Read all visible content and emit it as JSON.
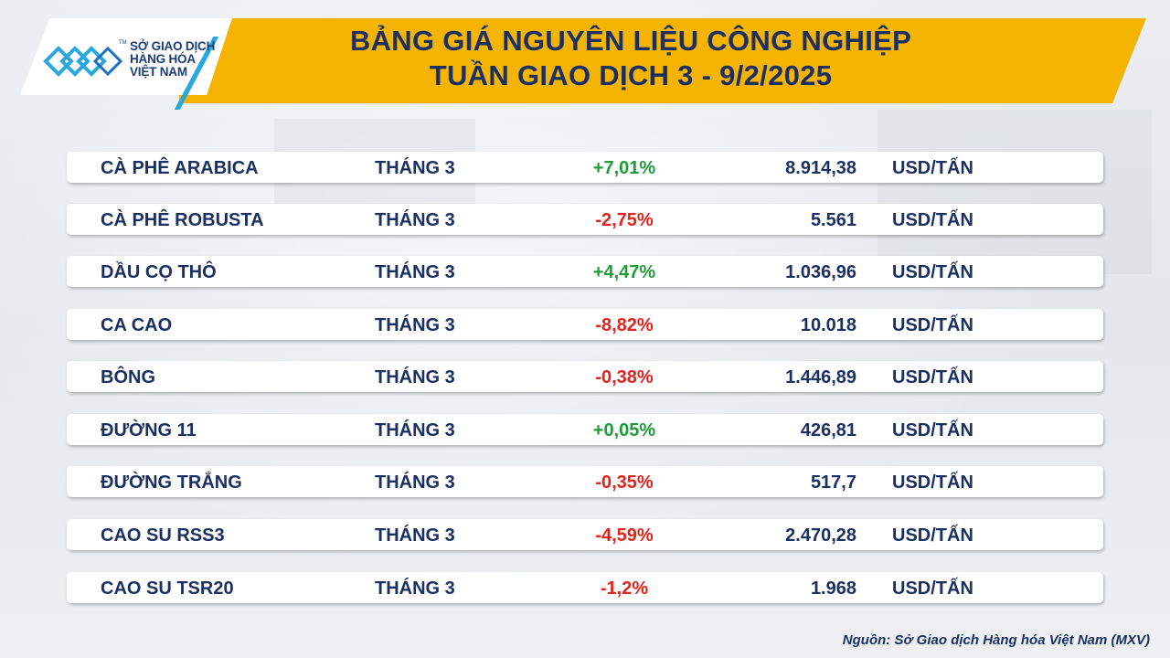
{
  "header": {
    "logo_lines": [
      "SỞ GIAO DỊCH",
      "HÀNG HÓA",
      "VIỆT NAM"
    ],
    "logo_tm": "TM",
    "title_line1": "BẢNG GIÁ NGUYÊN LIỆU CÔNG NGHIỆP",
    "title_line2": "TUẦN GIAO DỊCH 3 - 9/2/2025"
  },
  "colors": {
    "banner": "#f4b400",
    "title_text": "#1b2f63",
    "positive": "#1e9c3a",
    "negative": "#e3231b",
    "logo_accent": "#2aa7df"
  },
  "rows": [
    {
      "name": "CÀ PHÊ ARABICA",
      "month": "THÁNG 3",
      "change": "+7,01%",
      "direction": "up",
      "price": "8.914,38",
      "unit": "USD/TẤN"
    },
    {
      "name": "CÀ PHÊ ROBUSTA",
      "month": "THÁNG 3",
      "change": "-2,75%",
      "direction": "down",
      "price": "5.561",
      "unit": "USD/TẤN"
    },
    {
      "name": "DẦU CỌ THÔ",
      "month": "THÁNG 3",
      "change": "+4,47%",
      "direction": "up",
      "price": "1.036,96",
      "unit": "USD/TẤN"
    },
    {
      "name": "CA CAO",
      "month": "THÁNG 3",
      "change": "-8,82%",
      "direction": "down",
      "price": "10.018",
      "unit": "USD/TẤN"
    },
    {
      "name": "BÔNG",
      "month": "THÁNG 3",
      "change": "-0,38%",
      "direction": "down",
      "price": "1.446,89",
      "unit": "USD/TẤN"
    },
    {
      "name": "ĐƯỜNG 11",
      "month": "THÁNG 3",
      "change": "+0,05%",
      "direction": "up",
      "price": "426,81",
      "unit": "USD/TẤN"
    },
    {
      "name": "ĐƯỜNG TRẮNG",
      "month": "THÁNG 3",
      "change": "-0,35%",
      "direction": "down",
      "price": "517,7",
      "unit": "USD/TẤN"
    },
    {
      "name": "CAO SU RSS3",
      "month": "THÁNG 3",
      "change": "-4,59%",
      "direction": "down",
      "price": "2.470,28",
      "unit": "USD/TẤN"
    },
    {
      "name": "CAO SU TSR20",
      "month": "THÁNG 3",
      "change": "-1,2%",
      "direction": "down",
      "price": "1.968",
      "unit": "USD/TẤN"
    }
  ],
  "footer": {
    "source": "Nguồn: Sở Giao dịch Hàng hóa Việt Nam (MXV)"
  }
}
